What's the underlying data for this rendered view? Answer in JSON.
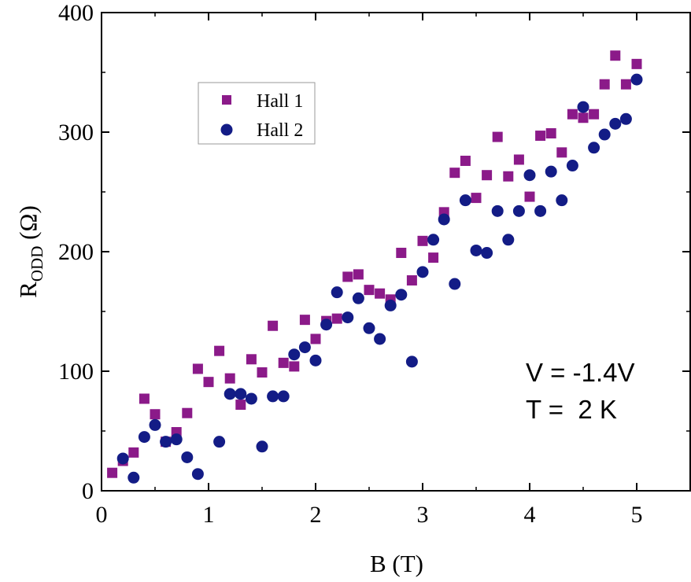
{
  "chart_data": {
    "type": "scatter",
    "xlabel": "B (T)",
    "ylabel_main": "R",
    "ylabel_sub": "ODD",
    "ylabel_unit": " (Ω)",
    "xlim": [
      0,
      5.5
    ],
    "ylim": [
      0,
      400
    ],
    "xticks": [
      0,
      1,
      2,
      3,
      4,
      5
    ],
    "yticks": [
      0,
      100,
      200,
      300,
      400
    ],
    "grid": false,
    "legend_position": "upper-left",
    "annotations": [
      "V = -1.4V",
      "T =  2 K"
    ],
    "series": [
      {
        "name": "Hall 1",
        "marker": "square",
        "color": "#8B1A89",
        "x": [
          0.1,
          0.2,
          0.3,
          0.4,
          0.5,
          0.6,
          0.7,
          0.8,
          0.9,
          1.0,
          1.1,
          1.2,
          1.3,
          1.4,
          1.5,
          1.6,
          1.7,
          1.8,
          1.9,
          2.0,
          2.1,
          2.2,
          2.3,
          2.4,
          2.5,
          2.6,
          2.7,
          2.8,
          2.9,
          3.0,
          3.1,
          3.2,
          3.3,
          3.4,
          3.5,
          3.6,
          3.7,
          3.8,
          3.9,
          4.0,
          4.1,
          4.2,
          4.3,
          4.4,
          4.5,
          4.6,
          4.7,
          4.8,
          4.9,
          5.0
        ],
        "y": [
          15,
          25,
          32,
          77,
          64,
          41,
          49,
          65,
          102,
          91,
          117,
          94,
          72,
          110,
          99,
          138,
          107,
          104,
          143,
          127,
          142,
          144,
          179,
          181,
          168,
          165,
          160,
          199,
          176,
          209,
          195,
          233,
          266,
          276,
          245,
          264,
          296,
          263,
          277,
          246,
          297,
          299,
          283,
          315,
          312,
          315,
          340,
          364,
          340,
          357
        ]
      },
      {
        "name": "Hall 2",
        "marker": "circle",
        "color": "#131C86",
        "x": [
          0.2,
          0.3,
          0.4,
          0.5,
          0.6,
          0.7,
          0.8,
          0.9,
          1.1,
          1.2,
          1.3,
          1.4,
          1.5,
          1.6,
          1.7,
          1.8,
          1.9,
          2.0,
          2.1,
          2.2,
          2.3,
          2.4,
          2.5,
          2.6,
          2.7,
          2.8,
          2.9,
          3.0,
          3.1,
          3.2,
          3.3,
          3.4,
          3.5,
          3.6,
          3.7,
          3.8,
          3.9,
          4.0,
          4.1,
          4.2,
          4.3,
          4.4,
          4.5,
          4.6,
          4.7,
          4.8,
          4.9,
          5.0
        ],
        "y": [
          27,
          11,
          45,
          55,
          41,
          43,
          28,
          14,
          41,
          81,
          81,
          77,
          37,
          79,
          79,
          114,
          120,
          109,
          139,
          166,
          145,
          161,
          136,
          127,
          155,
          164,
          108,
          183,
          210,
          227,
          173,
          243,
          201,
          199,
          234,
          210,
          234,
          264,
          234,
          267,
          243,
          272,
          321,
          287,
          298,
          307,
          311,
          344
        ]
      }
    ]
  }
}
